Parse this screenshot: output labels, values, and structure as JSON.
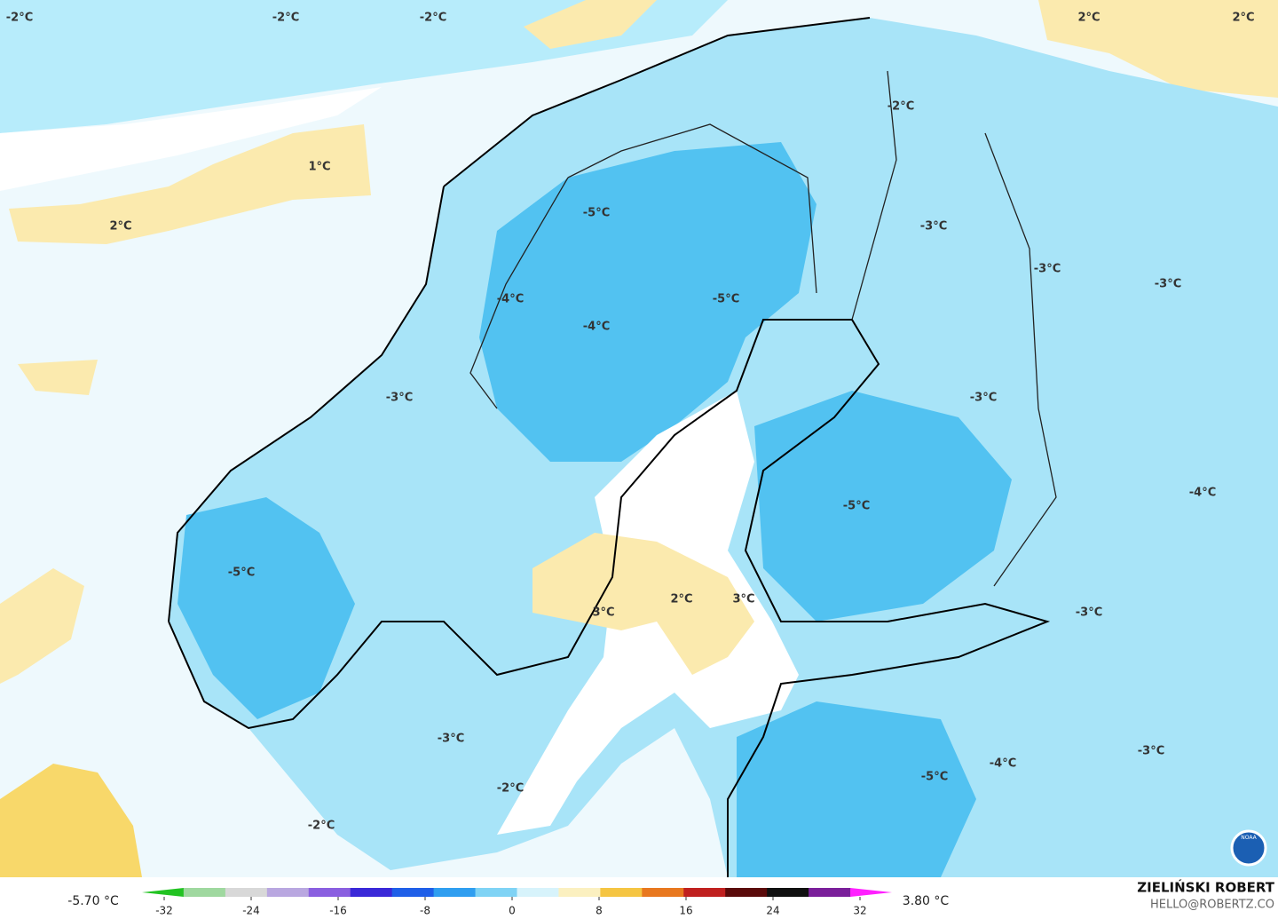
{
  "map": {
    "contour_labels": [
      "-2°C",
      "-2°C",
      "-2°C",
      "2°C",
      "2°C",
      "1°C",
      "2°C",
      "-2°C",
      "-5°C",
      "-3°C",
      "-3°C",
      "-3°C",
      "-4°C",
      "-5°C",
      "-4°C",
      "-3°C",
      "-3°C",
      "-4°C",
      "-5°C",
      "-5°C",
      "2°C",
      "3°C",
      "3°C",
      "-3°C",
      "-3°C",
      "-4°C",
      "-3°C",
      "-5°C",
      "-2°C",
      "-2°C"
    ]
  },
  "legend": {
    "min_label": "-5.70 °C",
    "max_label": "3.80 °C",
    "ticks": [
      -32,
      -24,
      -16,
      -8,
      0,
      8,
      16,
      24,
      32
    ],
    "colors": [
      "#22c322",
      "#9fd89f",
      "#d8d8d8",
      "#b9a7e0",
      "#8a5fe0",
      "#3a28d8",
      "#1f5fe8",
      "#2f9ef0",
      "#7fd3f5",
      "#d7f3fb",
      "#fbf0c0",
      "#f5c542",
      "#e8781f",
      "#c0201f",
      "#5a0a0a",
      "#101010",
      "#7a1f9a",
      "#ff20ff"
    ]
  },
  "credit": {
    "author": "ZIELIŃSKI ROBERT",
    "email": "HELLO@ROBERTZ.CO",
    "logo_text": "NOAA"
  }
}
